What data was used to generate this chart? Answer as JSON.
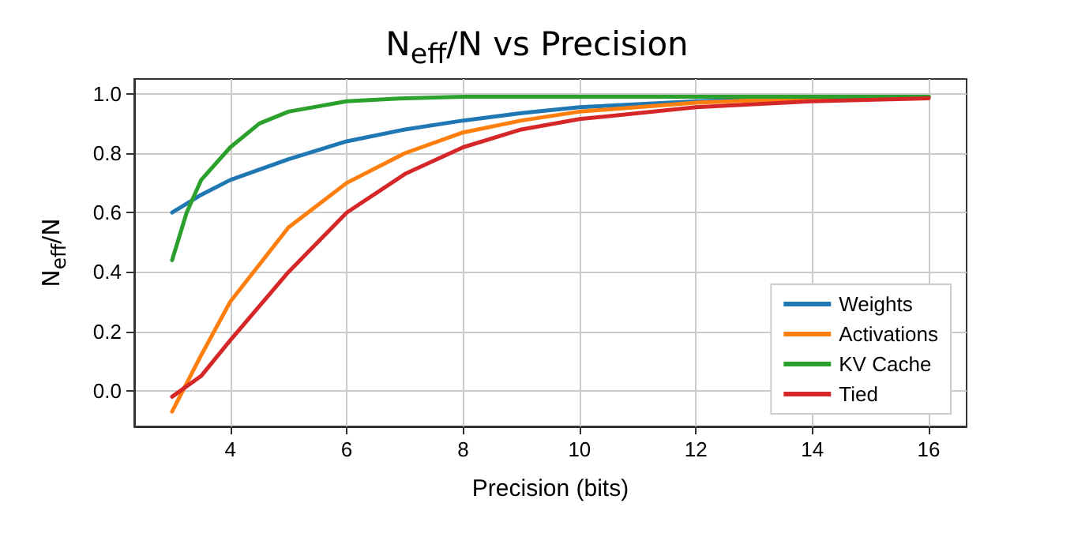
{
  "chart_data": {
    "type": "line",
    "title": "N$_{eff}$/N vs Precision",
    "xlabel": "Precision (bits)",
    "ylabel": "N$_{eff}$/N",
    "xlim": [
      2.35,
      16.65
    ],
    "xticks": [
      4,
      6,
      8,
      10,
      12,
      14,
      16
    ],
    "ylim": [
      -0.12,
      1.05
    ],
    "yticks": [
      {
        "value": 0,
        "label": "0.0"
      },
      0.2,
      0.4,
      0.6,
      0.8,
      {
        "value": 1,
        "label": "1.0"
      }
    ],
    "grid": true,
    "legend": "bottom right",
    "marker": "none",
    "line_style": "solid",
    "series": [
      {
        "name": "Weights",
        "color": "#1f77b4",
        "x": [
          3,
          3.5,
          4,
          5,
          6,
          7,
          8,
          9,
          10,
          12,
          14,
          16
        ],
        "values": [
          0.6,
          0.66,
          0.71,
          0.78,
          0.84,
          0.88,
          0.91,
          0.935,
          0.955,
          0.975,
          0.985,
          0.99
        ]
      },
      {
        "name": "Activations",
        "color": "#ff7f0e",
        "x": [
          3,
          3.5,
          4,
          5,
          6,
          7,
          8,
          9,
          10,
          12,
          14,
          16
        ],
        "values": [
          -0.07,
          0.12,
          0.3,
          0.55,
          0.7,
          0.8,
          0.87,
          0.91,
          0.94,
          0.97,
          0.985,
          0.99
        ]
      },
      {
        "name": "KV Cache",
        "color": "#2ca02c",
        "x": [
          3,
          3.25,
          3.5,
          4,
          4.5,
          5,
          6,
          7,
          8,
          10,
          16
        ],
        "values": [
          0.44,
          0.6,
          0.71,
          0.82,
          0.9,
          0.94,
          0.975,
          0.985,
          0.99,
          0.99,
          0.99
        ]
      },
      {
        "name": "Tied",
        "color": "#d62728",
        "x": [
          3,
          3.5,
          4,
          5,
          6,
          7,
          8,
          9,
          10,
          12,
          14,
          16
        ],
        "values": [
          -0.02,
          0.05,
          0.17,
          0.4,
          0.6,
          0.73,
          0.82,
          0.88,
          0.915,
          0.955,
          0.975,
          0.985
        ]
      }
    ]
  }
}
